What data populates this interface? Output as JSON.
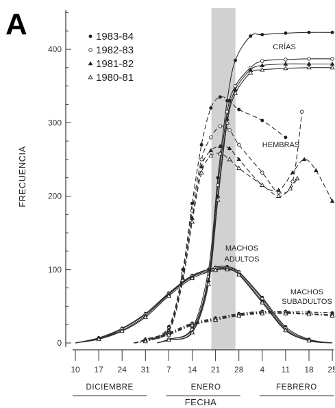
{
  "figure": {
    "panel_label": "A",
    "ylabel": "FRECUENCIA",
    "xlabel": "FECHA"
  },
  "chart_data": {
    "type": "line",
    "xlabel": "FECHA",
    "ylabel": "FRECUENCIA",
    "ylim": [
      0,
      450
    ],
    "yticks": [
      0,
      100,
      200,
      300,
      400
    ],
    "x_tick_labels": [
      "10",
      "17",
      "24",
      "31",
      "7",
      "14",
      "21",
      "28",
      "4",
      "11",
      "18",
      "25"
    ],
    "months": [
      {
        "name": "DICIEMBRE",
        "from": "10",
        "to": "31"
      },
      {
        "name": "ENERO",
        "from": "7",
        "to": "28"
      },
      {
        "name": "FEBRERO",
        "from": "4",
        "to": "25"
      }
    ],
    "shaded_band": {
      "from": "21",
      "to": "28"
    },
    "grid": false,
    "legend": {
      "position": "top-left",
      "entries": [
        {
          "label": "1983-84",
          "marker": "filled-circle"
        },
        {
          "label": "1982-83",
          "marker": "open-circle"
        },
        {
          "label": "1981-82",
          "marker": "filled-triangle"
        },
        {
          "label": "1980-81",
          "marker": "open-triangle"
        }
      ]
    },
    "annotations": [
      {
        "text": "CRÍAS",
        "group": "crias"
      },
      {
        "text": "HEMBRAS",
        "group": "hembras"
      },
      {
        "text": "MACHOS",
        "group": "machos_adultos"
      },
      {
        "text": "ADULTOS",
        "group": "machos_adultos"
      },
      {
        "text": "MACHOS",
        "group": "machos_subadultos"
      },
      {
        "text": "SUBADULTOS",
        "group": "machos_subadultos"
      }
    ],
    "series": [
      {
        "group": "crias",
        "season": "1983-84",
        "marker": "filled-circle",
        "dash": "solid",
        "points": [
          [
            3.5,
            0
          ],
          [
            4,
            5
          ],
          [
            5,
            20
          ],
          [
            5.7,
            100
          ],
          [
            6.1,
            225
          ],
          [
            6.5,
            330
          ],
          [
            6.85,
            385
          ],
          [
            7.5,
            418
          ],
          [
            8,
            420
          ],
          [
            9,
            422
          ],
          [
            10,
            423
          ],
          [
            11,
            423
          ]
        ]
      },
      {
        "group": "crias",
        "season": "1982-83",
        "marker": "open-circle",
        "dash": "solid",
        "points": [
          [
            3.5,
            0
          ],
          [
            4,
            5
          ],
          [
            5,
            18
          ],
          [
            5.7,
            90
          ],
          [
            6.1,
            215
          ],
          [
            6.5,
            315
          ],
          [
            6.85,
            350
          ],
          [
            7.5,
            375
          ],
          [
            8,
            384
          ],
          [
            9,
            386
          ],
          [
            10,
            387
          ],
          [
            11,
            387
          ]
        ]
      },
      {
        "group": "crias",
        "season": "1981-82",
        "marker": "filled-triangle",
        "dash": "solid",
        "points": [
          [
            3.5,
            0
          ],
          [
            4,
            4
          ],
          [
            5,
            15
          ],
          [
            5.7,
            85
          ],
          [
            6.1,
            200
          ],
          [
            6.5,
            305
          ],
          [
            6.85,
            345
          ],
          [
            7.5,
            372
          ],
          [
            8,
            378
          ],
          [
            9,
            380
          ],
          [
            10,
            380
          ],
          [
            11,
            380
          ]
        ]
      },
      {
        "group": "crias",
        "season": "1980-81",
        "marker": "open-triangle",
        "dash": "solid",
        "points": [
          [
            3.5,
            0
          ],
          [
            4,
            4
          ],
          [
            5,
            14
          ],
          [
            5.7,
            80
          ],
          [
            6.1,
            195
          ],
          [
            6.5,
            300
          ],
          [
            6.85,
            340
          ],
          [
            7.5,
            368
          ],
          [
            8,
            372
          ],
          [
            9,
            374
          ],
          [
            10,
            375
          ],
          [
            11,
            375
          ]
        ]
      },
      {
        "group": "hembras",
        "season": "1983-84",
        "marker": "filled-circle",
        "dash": "dashed",
        "points": [
          [
            2.5,
            0
          ],
          [
            3,
            5
          ],
          [
            4,
            22
          ],
          [
            4.6,
            100
          ],
          [
            5,
            190
          ],
          [
            5.4,
            270
          ],
          [
            5.8,
            320
          ],
          [
            6.2,
            335
          ],
          [
            6.6,
            330
          ],
          [
            7,
            318
          ],
          [
            8,
            303
          ],
          [
            9,
            280
          ]
        ]
      },
      {
        "group": "hembras",
        "season": "1982-83",
        "marker": "open-circle",
        "dash": "dashed",
        "points": [
          [
            2.5,
            0
          ],
          [
            3,
            5
          ],
          [
            4,
            20
          ],
          [
            4.6,
            95
          ],
          [
            5,
            180
          ],
          [
            5.4,
            250
          ],
          [
            5.8,
            280
          ],
          [
            6.2,
            295
          ],
          [
            6.6,
            290
          ],
          [
            7,
            270
          ],
          [
            8,
            232
          ],
          [
            8.7,
            205
          ],
          [
            9.3,
            220
          ],
          [
            9.7,
            315
          ]
        ]
      },
      {
        "group": "hembras",
        "season": "1981-82",
        "marker": "filled-triangle",
        "dash": "dashed",
        "points": [
          [
            2.5,
            0
          ],
          [
            3,
            4
          ],
          [
            4,
            18
          ],
          [
            4.6,
            88
          ],
          [
            5,
            170
          ],
          [
            5.4,
            240
          ],
          [
            5.8,
            262
          ],
          [
            6.2,
            268
          ],
          [
            6.6,
            265
          ],
          [
            7,
            250
          ],
          [
            8,
            215
          ],
          [
            8.7,
            208
          ],
          [
            9.3,
            232
          ],
          [
            9.8,
            250
          ],
          [
            10.3,
            235
          ],
          [
            11,
            193
          ]
        ]
      },
      {
        "group": "hembras",
        "season": "1980-81",
        "marker": "open-triangle",
        "dash": "dashed",
        "points": [
          [
            2.5,
            0
          ],
          [
            3,
            4
          ],
          [
            4,
            16
          ],
          [
            4.6,
            85
          ],
          [
            5,
            165
          ],
          [
            5.4,
            232
          ],
          [
            5.8,
            255
          ],
          [
            6.2,
            258
          ],
          [
            6.6,
            250
          ],
          [
            7,
            238
          ],
          [
            8,
            215
          ],
          [
            8.7,
            200
          ],
          [
            9.2,
            210
          ],
          [
            9.5,
            224
          ]
        ]
      },
      {
        "group": "machos_adultos",
        "season": "1983-84",
        "marker": "filled-circle",
        "dash": "solid",
        "points": [
          [
            0,
            0
          ],
          [
            1,
            7
          ],
          [
            2,
            20
          ],
          [
            3,
            40
          ],
          [
            4,
            68
          ],
          [
            5,
            92
          ],
          [
            6,
            103
          ],
          [
            6.5,
            104
          ],
          [
            7,
            97
          ],
          [
            8,
            62
          ],
          [
            9,
            22
          ],
          [
            10,
            5
          ],
          [
            11,
            0
          ]
        ]
      },
      {
        "group": "machos_adultos",
        "season": "1982-83",
        "marker": "open-circle",
        "dash": "solid",
        "points": [
          [
            0,
            0
          ],
          [
            1,
            6
          ],
          [
            2,
            19
          ],
          [
            3,
            39
          ],
          [
            4,
            67
          ],
          [
            5,
            91
          ],
          [
            6,
            102
          ],
          [
            6.5,
            102
          ],
          [
            7,
            96
          ],
          [
            8,
            60
          ],
          [
            9,
            20
          ],
          [
            10,
            4
          ],
          [
            11,
            0
          ]
        ]
      },
      {
        "group": "machos_adultos",
        "season": "1981-82",
        "marker": "filled-triangle",
        "dash": "solid",
        "points": [
          [
            0,
            0
          ],
          [
            1,
            6
          ],
          [
            2,
            17
          ],
          [
            3,
            37
          ],
          [
            4,
            66
          ],
          [
            5,
            90
          ],
          [
            6,
            100
          ],
          [
            6.5,
            101
          ],
          [
            7,
            94
          ],
          [
            8,
            57
          ],
          [
            9,
            18
          ],
          [
            10,
            3
          ],
          [
            11,
            0
          ]
        ]
      },
      {
        "group": "machos_adultos",
        "season": "1980-81",
        "marker": "open-triangle",
        "dash": "solid",
        "points": [
          [
            0,
            0
          ],
          [
            1,
            5
          ],
          [
            2,
            16
          ],
          [
            3,
            35
          ],
          [
            4,
            64
          ],
          [
            5,
            88
          ],
          [
            6,
            99
          ],
          [
            6.5,
            100
          ],
          [
            7,
            93
          ],
          [
            8,
            55
          ],
          [
            9,
            17
          ],
          [
            10,
            3
          ],
          [
            11,
            0
          ]
        ]
      },
      {
        "group": "machos_subadultos",
        "season": "1983-84",
        "marker": "filled-circle",
        "dash": "dashdot",
        "points": [
          [
            2.5,
            0
          ],
          [
            3,
            3
          ],
          [
            4,
            14
          ],
          [
            5,
            27
          ],
          [
            6,
            34
          ],
          [
            7,
            40
          ],
          [
            8,
            43
          ],
          [
            9,
            43
          ],
          [
            10,
            42
          ],
          [
            11,
            41
          ]
        ]
      },
      {
        "group": "machos_subadultos",
        "season": "1982-83",
        "marker": "open-circle",
        "dash": "dashdot",
        "points": [
          [
            2.5,
            0
          ],
          [
            3,
            3
          ],
          [
            4,
            13
          ],
          [
            5,
            26
          ],
          [
            6,
            33
          ],
          [
            7,
            39
          ],
          [
            8,
            42
          ],
          [
            9,
            42
          ],
          [
            10,
            40
          ],
          [
            11,
            38
          ]
        ]
      },
      {
        "group": "machos_subadultos",
        "season": "1981-82",
        "marker": "filled-triangle",
        "dash": "dashdot",
        "points": [
          [
            2.5,
            0
          ],
          [
            3,
            3
          ],
          [
            4,
            12
          ],
          [
            5,
            25
          ],
          [
            6,
            32
          ],
          [
            7,
            38
          ],
          [
            8,
            41
          ],
          [
            9,
            41
          ],
          [
            10,
            40
          ],
          [
            11,
            38
          ]
        ]
      },
      {
        "group": "machos_subadultos",
        "season": "1980-81",
        "marker": "open-triangle",
        "dash": "dashdot",
        "points": [
          [
            2.5,
            0
          ],
          [
            3,
            2
          ],
          [
            4,
            11
          ],
          [
            5,
            24
          ],
          [
            6,
            31
          ],
          [
            7,
            37
          ],
          [
            8,
            40
          ],
          [
            9,
            40
          ],
          [
            10,
            39
          ],
          [
            11,
            37
          ]
        ]
      }
    ]
  }
}
